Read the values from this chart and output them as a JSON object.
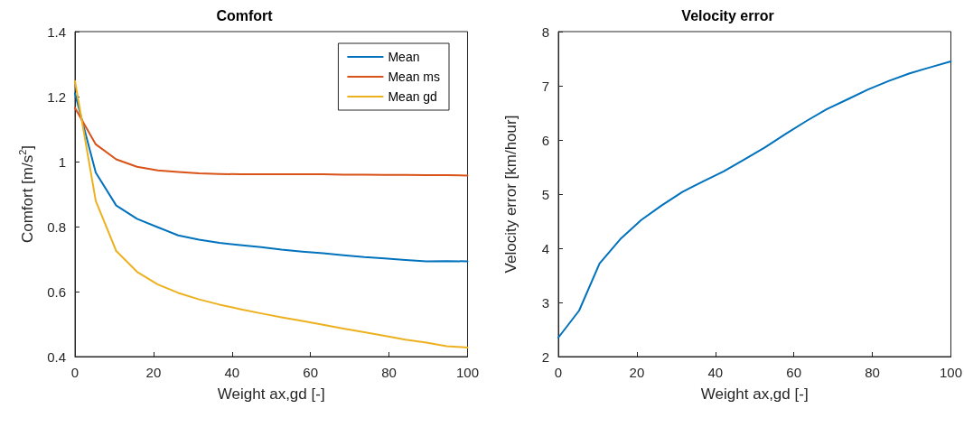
{
  "chart_data": [
    {
      "type": "line",
      "title": "Comfort",
      "xlabel": "Weight ax,gd [-]",
      "ylabel": "Comfort [m/s$^{2}$]",
      "x": [
        0,
        5.3,
        10.5,
        15.8,
        21.1,
        26.3,
        31.6,
        36.8,
        42.1,
        47.4,
        52.6,
        57.9,
        63.2,
        68.4,
        73.7,
        78.9,
        84.2,
        89.5,
        94.7,
        100
      ],
      "xlim": [
        0,
        100
      ],
      "xticks": [
        0,
        20,
        40,
        60,
        80,
        100
      ],
      "ylim": [
        0.4,
        1.4
      ],
      "yticks": [
        0.4,
        0.6,
        0.8,
        1,
        1.2,
        1.4
      ],
      "grid": false,
      "legend": "top right",
      "marker": "none",
      "line_style": "solid",
      "series": [
        {
          "name": "Mean",
          "color": "#0072bd",
          "values": [
            1.21,
            0.966,
            0.865,
            0.824,
            0.798,
            0.773,
            0.76,
            0.75,
            0.743,
            0.737,
            0.729,
            0.723,
            0.718,
            0.712,
            0.706,
            0.702,
            0.697,
            0.693,
            0.694,
            0.693
          ]
        },
        {
          "name": "Mean ms",
          "color": "#d95319",
          "values": [
            1.165,
            1.053,
            1.007,
            0.984,
            0.973,
            0.968,
            0.964,
            0.962,
            0.961,
            0.961,
            0.961,
            0.961,
            0.961,
            0.96,
            0.96,
            0.959,
            0.959,
            0.958,
            0.958,
            0.957
          ]
        },
        {
          "name": "Mean gd",
          "color": "#edb120",
          "values": [
            1.248,
            0.879,
            0.725,
            0.661,
            0.622,
            0.596,
            0.576,
            0.56,
            0.546,
            0.533,
            0.521,
            0.51,
            0.498,
            0.486,
            0.475,
            0.464,
            0.452,
            0.443,
            0.432,
            0.428
          ]
        }
      ]
    },
    {
      "type": "line",
      "title": "Velocity error",
      "xlabel": "Weight ax,gd [-]",
      "ylabel": "Velocity error [km/hour]",
      "x": [
        0,
        5.3,
        10.5,
        15.8,
        21.1,
        26.3,
        31.6,
        36.8,
        42.1,
        47.4,
        52.6,
        57.9,
        63.2,
        68.4,
        73.7,
        78.9,
        84.2,
        89.5,
        94.7,
        100
      ],
      "xlim": [
        0,
        100
      ],
      "xticks": [
        0,
        20,
        40,
        60,
        80,
        100
      ],
      "ylim": [
        2,
        8
      ],
      "yticks": [
        2,
        3,
        4,
        5,
        6,
        7,
        8
      ],
      "grid": false,
      "legend": false,
      "marker": "none",
      "line_style": "solid",
      "series": [
        {
          "color": "#0072bd",
          "values": [
            2.35,
            2.85,
            3.72,
            4.17,
            4.52,
            4.79,
            5.04,
            5.23,
            5.42,
            5.64,
            5.86,
            6.11,
            6.35,
            6.57,
            6.75,
            6.93,
            7.09,
            7.23,
            7.34,
            7.45
          ]
        }
      ]
    }
  ]
}
